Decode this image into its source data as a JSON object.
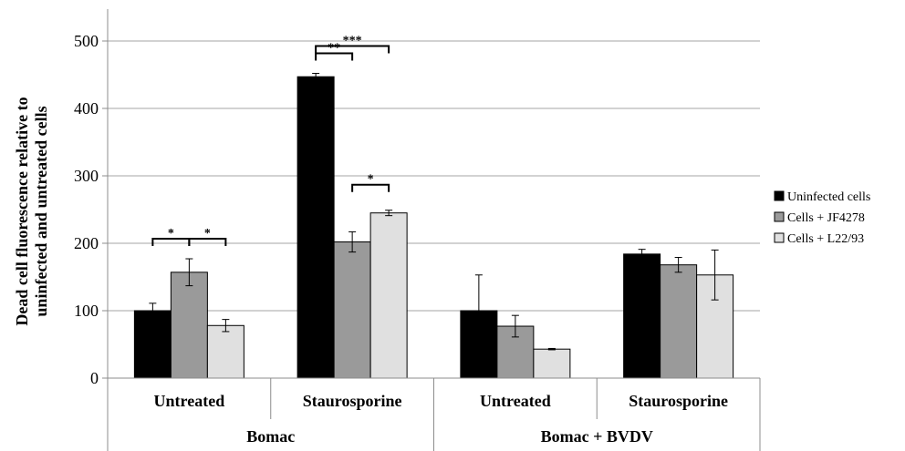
{
  "chart_data": {
    "type": "bar",
    "ylabel_lines": [
      "Dead cell fluorescence relative to",
      "uninfected and untreated cells"
    ],
    "ylim": [
      0,
      500
    ],
    "yticks": [
      0,
      100,
      200,
      300,
      400,
      500
    ],
    "grid": true,
    "legend_position": "right",
    "groups": [
      {
        "name": "Bomac",
        "subgroups": [
          {
            "name": "Untreated",
            "values": [
              100,
              157,
              78
            ],
            "errors": [
              11,
              20,
              9
            ]
          },
          {
            "name": "Staurosporine",
            "values": [
              447,
              202,
              245
            ],
            "errors": [
              5,
              15,
              4
            ]
          }
        ]
      },
      {
        "name": "Bomac + BVDV",
        "subgroups": [
          {
            "name": "Untreated",
            "values": [
              100,
              77,
              43
            ],
            "errors": [
              53,
              16,
              1
            ]
          },
          {
            "name": "Staurosporine",
            "values": [
              184,
              168,
              153
            ],
            "errors": [
              7,
              11,
              37
            ]
          }
        ]
      }
    ],
    "series": [
      {
        "name": "Uninfected cells",
        "color": "#000000"
      },
      {
        "name": "Cells + JF4278",
        "color": "#9a9a9a"
      },
      {
        "name": "Cells + L22/93",
        "color": "#e0e0e0"
      }
    ],
    "significance": [
      {
        "group": 0,
        "subgroup": 0,
        "from": 0,
        "to": 1,
        "label": "*",
        "level": 0
      },
      {
        "group": 0,
        "subgroup": 0,
        "from": 1,
        "to": 2,
        "label": "*",
        "level": 0
      },
      {
        "group": 0,
        "subgroup": 1,
        "from": 0,
        "to": 1,
        "label": "**",
        "level": 0
      },
      {
        "group": 0,
        "subgroup": 1,
        "from": 0,
        "to": 2,
        "label": "***",
        "level": 1
      },
      {
        "group": 0,
        "subgroup": 1,
        "from": 1,
        "to": 2,
        "label": "*",
        "level": 2
      }
    ]
  }
}
